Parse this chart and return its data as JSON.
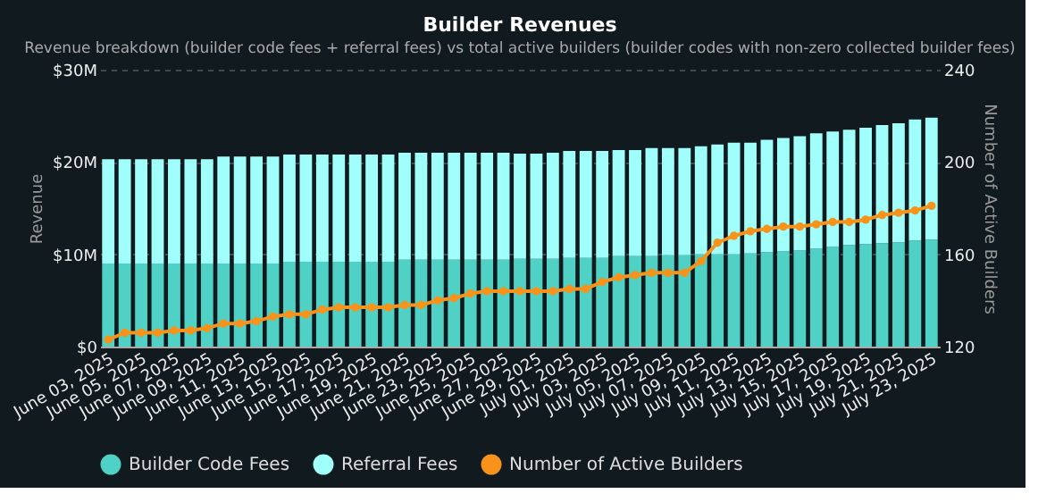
{
  "chart_data": {
    "type": "bar",
    "title": "Builder Revenues",
    "subtitle": "Revenue breakdown (builder code fees + referral fees) vs total active builders (builder codes with non-zero collected builder fees)",
    "categories": [
      "June 03, 2025",
      null,
      "June 05, 2025",
      null,
      "June 07, 2025",
      null,
      "June 09, 2025",
      null,
      "June 11, 2025",
      null,
      "June 13, 2025",
      null,
      "June 15, 2025",
      null,
      "June 17, 2025",
      null,
      "June 19, 2025",
      null,
      "June 21, 2025",
      null,
      "June 23, 2025",
      null,
      "June 25, 2025",
      null,
      "June 27, 2025",
      null,
      "June 29, 2025",
      null,
      "July 01, 2025",
      null,
      "July 03, 2025",
      null,
      "July 05, 2025",
      null,
      "July 07, 2025",
      null,
      "July 09, 2025",
      null,
      "July 11, 2025",
      null,
      "July 13, 2025",
      null,
      "July 15, 2025",
      null,
      "July 17, 2025",
      null,
      "July 19, 2025",
      null,
      "July 21, 2025",
      null,
      "July 23, 2025"
    ],
    "stacked": true,
    "ylabel": "Revenue",
    "y2label": "Number of Active Builders",
    "ylim": [
      0,
      30
    ],
    "yticks": [
      {
        "value": 0,
        "label": "$0"
      },
      {
        "value": 10,
        "label": "$10M"
      },
      {
        "value": 20,
        "label": "$20M"
      },
      {
        "value": 30,
        "label": "$30M"
      }
    ],
    "y2lim": [
      120,
      240
    ],
    "y2ticks": [
      120,
      160,
      200,
      240
    ],
    "grid": "y",
    "legend": "bottom",
    "series": [
      {
        "name": "Builder Code Fees",
        "color": "#4fd1c5",
        "values": [
          9.0,
          9.0,
          9.0,
          9.0,
          9.0,
          9.0,
          9.0,
          9.0,
          9.0,
          9.0,
          9.0,
          9.2,
          9.2,
          9.2,
          9.2,
          9.2,
          9.2,
          9.2,
          9.4,
          9.4,
          9.4,
          9.4,
          9.4,
          9.4,
          9.4,
          9.5,
          9.5,
          9.5,
          9.6,
          9.6,
          9.6,
          9.8,
          9.8,
          9.8,
          9.9,
          9.9,
          10.0,
          10.0,
          10.0,
          10.1,
          10.2,
          10.3,
          10.4,
          10.6,
          10.8,
          11.0,
          11.1,
          11.2,
          11.3,
          11.5,
          11.6
        ]
      },
      {
        "name": "Referral Fees",
        "color": "#a0fffb",
        "values": [
          11.3,
          11.3,
          11.3,
          11.3,
          11.3,
          11.3,
          11.3,
          11.6,
          11.6,
          11.6,
          11.6,
          11.6,
          11.6,
          11.6,
          11.6,
          11.6,
          11.6,
          11.6,
          11.6,
          11.6,
          11.6,
          11.6,
          11.6,
          11.6,
          11.6,
          11.4,
          11.4,
          11.5,
          11.6,
          11.6,
          11.6,
          11.5,
          11.5,
          11.7,
          11.6,
          11.6,
          11.7,
          11.9,
          12.1,
          12.0,
          12.2,
          12.3,
          12.4,
          12.5,
          12.5,
          12.5,
          12.6,
          12.8,
          12.9,
          13.1,
          13.2
        ]
      },
      {
        "name": "Number of Active Builders",
        "type": "line",
        "axis": "y2",
        "color": "#f7931a",
        "marker": "circle",
        "values": [
          123,
          126,
          126,
          126,
          127,
          127,
          128,
          130,
          130,
          131,
          133,
          134,
          134,
          136,
          137,
          137,
          137,
          137,
          138,
          138,
          140,
          141,
          143,
          144,
          144,
          144,
          144,
          144,
          145,
          145,
          148,
          150,
          151,
          152,
          152,
          152,
          157,
          165,
          168,
          170,
          171,
          172,
          172,
          173,
          174,
          174,
          175,
          177,
          178,
          179,
          181
        ]
      }
    ]
  }
}
